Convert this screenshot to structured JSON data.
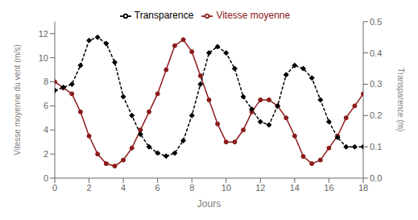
{
  "chart_data": {
    "type": "line",
    "x": [
      0,
      0.5,
      1.0,
      1.5,
      2.0,
      2.5,
      3.0,
      3.5,
      4.0,
      4.5,
      5.0,
      5.5,
      6.0,
      6.5,
      7.0,
      7.5,
      8.0,
      8.5,
      9.0,
      9.5,
      10.0,
      10.5,
      11.0,
      11.5,
      12.0,
      12.5,
      13.0,
      13.5,
      14.0,
      14.5,
      15.0,
      15.5,
      16.0,
      16.5,
      17.0,
      17.5,
      18.0
    ],
    "series": [
      {
        "name": "Vitesse moyenne",
        "color": "#8B1A1A",
        "marker": "circle",
        "line_style": "solid",
        "axis": "y",
        "values": [
          8.0,
          7.5,
          7.0,
          5.5,
          3.5,
          2.0,
          1.2,
          1.0,
          1.5,
          2.5,
          4.0,
          5.5,
          7.0,
          9.0,
          11.0,
          11.5,
          10.5,
          8.5,
          6.5,
          4.5,
          3.0,
          3.0,
          4.0,
          5.5,
          6.5,
          6.5,
          6.0,
          5.0,
          3.5,
          1.8,
          1.2,
          1.5,
          2.5,
          3.5,
          5.0,
          6.0,
          7.0
        ]
      },
      {
        "name": "Transparence",
        "color": "#000000",
        "marker": "diamond",
        "line_style": "dashed",
        "axis": "y2",
        "values": [
          0.28,
          0.29,
          0.3,
          0.36,
          0.44,
          0.45,
          0.43,
          0.37,
          0.26,
          0.2,
          0.14,
          0.1,
          0.08,
          0.07,
          0.08,
          0.12,
          0.2,
          0.3,
          0.4,
          0.42,
          0.4,
          0.35,
          0.26,
          0.22,
          0.18,
          0.17,
          0.23,
          0.33,
          0.36,
          0.35,
          0.32,
          0.25,
          0.18,
          0.13,
          0.1,
          0.1,
          0.1
        ]
      }
    ],
    "xlabel": "Jours",
    "ylabel": "Vitesse moyenne du vent (m/s)",
    "y2label": "Transparence (m)",
    "xlim": [
      0,
      18
    ],
    "xticks": [
      0,
      2,
      4,
      6,
      8,
      10,
      12,
      14,
      16,
      18
    ],
    "ylim": [
      0,
      13
    ],
    "yticks": [
      0,
      2,
      4,
      6,
      8,
      10,
      12
    ],
    "y2lim": [
      0.0,
      0.5
    ],
    "y2ticks": [
      {
        "value": 0.0,
        "label": "0.0"
      },
      0.1,
      0.2,
      0.3,
      0.4,
      0.5
    ],
    "legend": "top",
    "grid": false
  }
}
